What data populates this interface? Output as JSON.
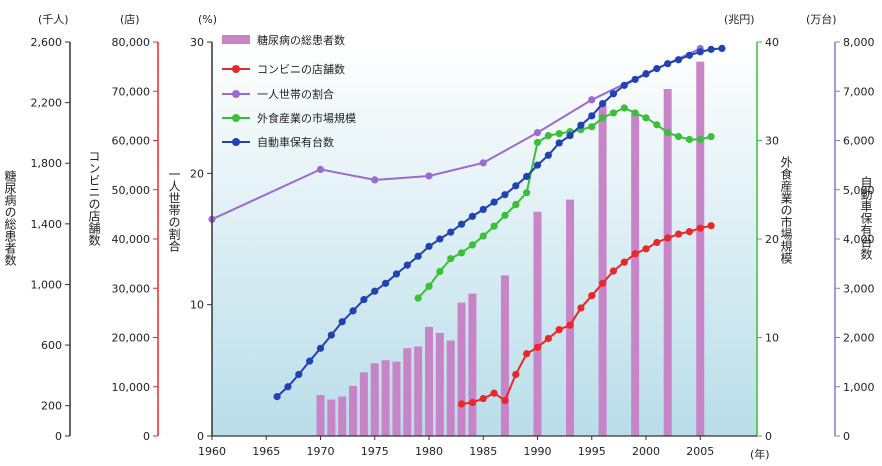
{
  "chart_data": {
    "type": "bar+line",
    "x_unit": "(年)",
    "x_ticks": [
      1960,
      1965,
      1970,
      1975,
      1980,
      1985,
      1990,
      1995,
      2000,
      2005
    ],
    "xlim": [
      1960,
      2009
    ],
    "axes": [
      {
        "id": "patients",
        "unit": "(千人)",
        "label": "糖尿病の総患者数",
        "ticks": [
          "0",
          "200",
          "600",
          "1,000",
          "1,400",
          "1,800",
          "2,200",
          "2,600"
        ],
        "ylim": [
          0,
          2600
        ],
        "color": "#c04fa6"
      },
      {
        "id": "stores",
        "unit": "(店)",
        "label": "コンビニの店舗数",
        "ticks": [
          "0",
          "10,000",
          "20,000",
          "30,000",
          "40,000",
          "50,000",
          "60,000",
          "70,000",
          "80,000"
        ],
        "ylim": [
          0,
          80000
        ],
        "color": "#e8282a"
      },
      {
        "id": "share",
        "unit": "(%)",
        "label": "一人世帯の割合",
        "ticks": [
          "0",
          "10",
          "20",
          "30"
        ],
        "ylim": [
          0,
          30
        ],
        "color": "#9a6bd1"
      },
      {
        "id": "market",
        "unit": "(兆円)",
        "label": "外食産業の市場規模",
        "ticks": [
          "0",
          "10",
          "20",
          "30",
          "40"
        ],
        "ylim": [
          0,
          40
        ],
        "color": "#3bbf3b"
      },
      {
        "id": "cars",
        "unit": "(万台)",
        "label": "自動車保有台数",
        "ticks": [
          "0",
          "1,000",
          "2,000",
          "3,000",
          "4,000",
          "5,000",
          "6,000",
          "7,000",
          "8,000"
        ],
        "ylim": [
          0,
          8000
        ],
        "color": "#6a6ac8"
      }
    ],
    "series": [
      {
        "name": "糖尿病の総患者数",
        "kind": "bar",
        "axis": "patients",
        "color": "#c784c6",
        "x": [
          1970,
          1971,
          1972,
          1973,
          1974,
          1975,
          1976,
          1977,
          1978,
          1979,
          1980,
          1981,
          1982,
          1983,
          1984,
          1987,
          1990,
          1993,
          1996,
          1999,
          2002,
          2005
        ],
        "y": [
          270,
          240,
          260,
          330,
          420,
          480,
          500,
          490,
          580,
          590,
          720,
          680,
          630,
          880,
          940,
          1060,
          1480,
          1560,
          2180,
          2130,
          2290,
          2470
        ]
      },
      {
        "name": "コンビニの店舗数",
        "kind": "line",
        "axis": "stores",
        "color": "#e8282a",
        "x": [
          1983,
          1984,
          1985,
          1986,
          1987,
          1988,
          1989,
          1990,
          1991,
          1992,
          1993,
          1994,
          1995,
          1996,
          1997,
          1998,
          1999,
          2000,
          2001,
          2002,
          2003,
          2004,
          2005,
          2006
        ],
        "y": [
          6500,
          6800,
          7600,
          8700,
          7200,
          12500,
          16700,
          18000,
          19800,
          21600,
          22500,
          26000,
          28500,
          31000,
          33500,
          35300,
          37000,
          38000,
          39300,
          40200,
          41000,
          41500,
          42200,
          42700
        ]
      },
      {
        "name": "一人世帯の割合",
        "kind": "line",
        "axis": "share",
        "color": "#9a6bd1",
        "x": [
          1960,
          1970,
          1975,
          1980,
          1985,
          1990,
          1995,
          2000,
          2005
        ],
        "y": [
          16.5,
          20.3,
          19.5,
          19.8,
          20.8,
          23.1,
          25.6,
          27.6,
          29.5
        ]
      },
      {
        "name": "外食産業の市場規模",
        "kind": "line",
        "axis": "market",
        "color": "#3bbf3b",
        "x": [
          1979,
          1980,
          1981,
          1982,
          1983,
          1984,
          1985,
          1986,
          1987,
          1988,
          1989,
          1990,
          1991,
          1992,
          1993,
          1994,
          1995,
          1996,
          1997,
          1998,
          1999,
          2000,
          2001,
          2002,
          2003,
          2004,
          2005,
          2006
        ],
        "y": [
          14.0,
          15.2,
          16.7,
          18.0,
          18.6,
          19.4,
          20.3,
          21.3,
          22.4,
          23.5,
          24.7,
          29.8,
          30.5,
          30.7,
          30.9,
          31.1,
          31.4,
          32.3,
          32.8,
          33.3,
          32.8,
          32.3,
          31.6,
          30.8,
          30.4,
          30.1,
          30.1,
          30.4
        ]
      },
      {
        "name": "自動車保有台数",
        "kind": "line",
        "axis": "cars",
        "color": "#2142b3",
        "x": [
          1966,
          1967,
          1968,
          1969,
          1970,
          1971,
          1972,
          1973,
          1974,
          1975,
          1976,
          1977,
          1978,
          1979,
          1980,
          1981,
          1982,
          1983,
          1984,
          1985,
          1986,
          1987,
          1988,
          1989,
          1990,
          1991,
          1992,
          1993,
          1994,
          1995,
          1996,
          1997,
          1998,
          1999,
          2000,
          2001,
          2002,
          2003,
          2004,
          2005,
          2006,
          2007
        ],
        "y": [
          800,
          1000,
          1250,
          1520,
          1780,
          2050,
          2320,
          2540,
          2770,
          2940,
          3100,
          3290,
          3470,
          3650,
          3850,
          4000,
          4140,
          4300,
          4460,
          4600,
          4750,
          4900,
          5080,
          5270,
          5500,
          5700,
          5950,
          6100,
          6310,
          6500,
          6750,
          6950,
          7120,
          7240,
          7350,
          7460,
          7560,
          7640,
          7730,
          7800,
          7850,
          7870
        ]
      }
    ],
    "legend_position": "top-left",
    "grid": false
  }
}
